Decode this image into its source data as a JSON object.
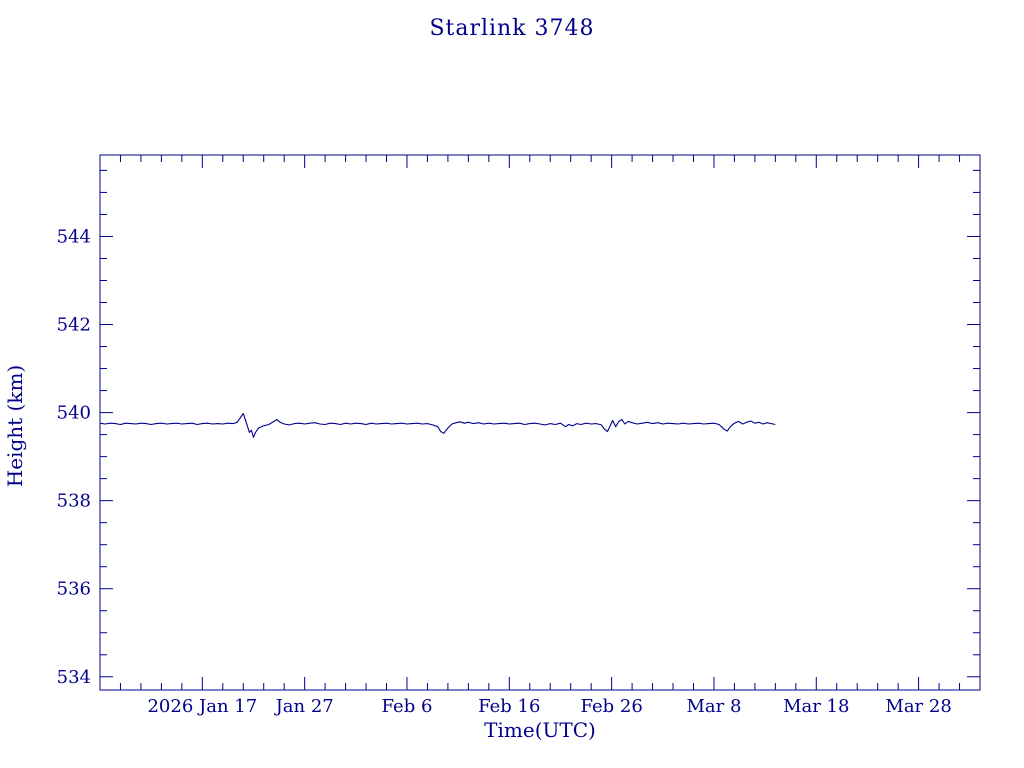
{
  "page": {
    "title": "Starlink 3748"
  },
  "colors": {
    "accent": "#00008B",
    "background": "#FFFFFF"
  },
  "chart_data": {
    "type": "line",
    "title": "Starlink 3748",
    "xlabel": "Time(UTC)",
    "ylabel": "Height (km)",
    "grid": false,
    "legend": "none",
    "x_axis_note": "x values are days, day 0 = plot left edge (~2026 Jan 7); ticks labeled by UTC date",
    "xlim": [
      0,
      86
    ],
    "ylim": [
      533.7,
      545.85
    ],
    "xticks": [
      10,
      20,
      30,
      40,
      50,
      60,
      70,
      80
    ],
    "xtick_labels": [
      "2026 Jan 17",
      "Jan 27",
      "Feb 6",
      "Feb 16",
      "Feb 26",
      "Mar 8",
      "Mar 18",
      "Mar 28"
    ],
    "yticks": [
      534,
      536,
      538,
      540,
      542,
      544
    ],
    "x_minor_step": 2,
    "y_minor_step": 0.5,
    "series": [
      {
        "name": "Starlink 3748 height (km)",
        "points": [
          [
            0,
            539.76
          ],
          [
            0.5,
            539.74
          ],
          [
            1,
            539.76
          ],
          [
            1.5,
            539.75
          ],
          [
            2,
            539.73
          ],
          [
            2.5,
            539.76
          ],
          [
            3,
            539.75
          ],
          [
            3.5,
            539.74
          ],
          [
            4,
            539.76
          ],
          [
            4.5,
            539.75
          ],
          [
            5,
            539.73
          ],
          [
            5.5,
            539.75
          ],
          [
            6,
            539.76
          ],
          [
            6.5,
            539.74
          ],
          [
            7,
            539.75
          ],
          [
            7.5,
            539.76
          ],
          [
            8,
            539.74
          ],
          [
            8.5,
            539.75
          ],
          [
            9,
            539.76
          ],
          [
            9.5,
            539.73
          ],
          [
            10,
            539.75
          ],
          [
            10.5,
            539.76
          ],
          [
            11,
            539.74
          ],
          [
            11.5,
            539.75
          ],
          [
            12,
            539.74
          ],
          [
            12.5,
            539.76
          ],
          [
            13,
            539.75
          ],
          [
            13.4,
            539.78
          ],
          [
            13.7,
            539.88
          ],
          [
            14,
            539.98
          ],
          [
            14.2,
            539.84
          ],
          [
            14.4,
            539.7
          ],
          [
            14.6,
            539.55
          ],
          [
            14.8,
            539.6
          ],
          [
            15,
            539.44
          ],
          [
            15.2,
            539.55
          ],
          [
            15.5,
            539.65
          ],
          [
            16,
            539.7
          ],
          [
            16.5,
            539.73
          ],
          [
            17,
            539.8
          ],
          [
            17.3,
            539.84
          ],
          [
            17.6,
            539.78
          ],
          [
            18,
            539.74
          ],
          [
            18.5,
            539.72
          ],
          [
            19,
            539.75
          ],
          [
            19.5,
            539.76
          ],
          [
            20,
            539.74
          ],
          [
            20.5,
            539.76
          ],
          [
            21,
            539.77
          ],
          [
            21.5,
            539.74
          ],
          [
            22,
            539.73
          ],
          [
            22.5,
            539.76
          ],
          [
            23,
            539.75
          ],
          [
            23.5,
            539.73
          ],
          [
            24,
            539.76
          ],
          [
            24.5,
            539.74
          ],
          [
            25,
            539.76
          ],
          [
            25.5,
            539.75
          ],
          [
            26,
            539.73
          ],
          [
            26.5,
            539.76
          ],
          [
            27,
            539.74
          ],
          [
            27.5,
            539.75
          ],
          [
            28,
            539.76
          ],
          [
            28.5,
            539.74
          ],
          [
            29,
            539.75
          ],
          [
            29.5,
            539.76
          ],
          [
            30,
            539.74
          ],
          [
            30.5,
            539.75
          ],
          [
            31,
            539.76
          ],
          [
            31.5,
            539.74
          ],
          [
            32,
            539.75
          ],
          [
            32.5,
            539.72
          ],
          [
            33,
            539.68
          ],
          [
            33.3,
            539.57
          ],
          [
            33.6,
            539.53
          ],
          [
            34,
            539.65
          ],
          [
            34.4,
            539.74
          ],
          [
            34.8,
            539.77
          ],
          [
            35.2,
            539.79
          ],
          [
            35.6,
            539.76
          ],
          [
            36,
            539.78
          ],
          [
            36.5,
            539.75
          ],
          [
            37,
            539.77
          ],
          [
            37.5,
            539.74
          ],
          [
            38,
            539.76
          ],
          [
            38.5,
            539.74
          ],
          [
            39,
            539.75
          ],
          [
            39.5,
            539.76
          ],
          [
            40,
            539.74
          ],
          [
            40.5,
            539.75
          ],
          [
            41,
            539.76
          ],
          [
            41.5,
            539.73
          ],
          [
            42,
            539.75
          ],
          [
            42.5,
            539.76
          ],
          [
            43,
            539.74
          ],
          [
            43.5,
            539.72
          ],
          [
            44,
            539.75
          ],
          [
            44.5,
            539.73
          ],
          [
            45,
            539.76
          ],
          [
            45.5,
            539.68
          ],
          [
            45.8,
            539.73
          ],
          [
            46.2,
            539.7
          ],
          [
            46.6,
            539.75
          ],
          [
            47,
            539.73
          ],
          [
            47.5,
            539.76
          ],
          [
            48,
            539.74
          ],
          [
            48.5,
            539.75
          ],
          [
            49,
            539.72
          ],
          [
            49.3,
            539.62
          ],
          [
            49.6,
            539.57
          ],
          [
            49.9,
            539.72
          ],
          [
            50.1,
            539.82
          ],
          [
            50.4,
            539.68
          ],
          [
            50.7,
            539.8
          ],
          [
            51,
            539.84
          ],
          [
            51.3,
            539.74
          ],
          [
            51.6,
            539.8
          ],
          [
            52,
            539.77
          ],
          [
            52.5,
            539.74
          ],
          [
            53,
            539.76
          ],
          [
            53.5,
            539.78
          ],
          [
            54,
            539.75
          ],
          [
            54.5,
            539.77
          ],
          [
            55,
            539.74
          ],
          [
            55.5,
            539.76
          ],
          [
            56,
            539.75
          ],
          [
            56.5,
            539.74
          ],
          [
            57,
            539.76
          ],
          [
            57.5,
            539.74
          ],
          [
            58,
            539.75
          ],
          [
            58.5,
            539.76
          ],
          [
            59,
            539.74
          ],
          [
            59.5,
            539.75
          ],
          [
            60,
            539.76
          ],
          [
            60.5,
            539.73
          ],
          [
            61,
            539.62
          ],
          [
            61.3,
            539.58
          ],
          [
            61.6,
            539.68
          ],
          [
            62,
            539.76
          ],
          [
            62.4,
            539.8
          ],
          [
            62.8,
            539.74
          ],
          [
            63.2,
            539.78
          ],
          [
            63.6,
            539.81
          ],
          [
            64,
            539.76
          ],
          [
            64.4,
            539.78
          ],
          [
            64.8,
            539.74
          ],
          [
            65.2,
            539.77
          ],
          [
            65.6,
            539.75
          ],
          [
            66,
            539.73
          ]
        ]
      }
    ]
  }
}
